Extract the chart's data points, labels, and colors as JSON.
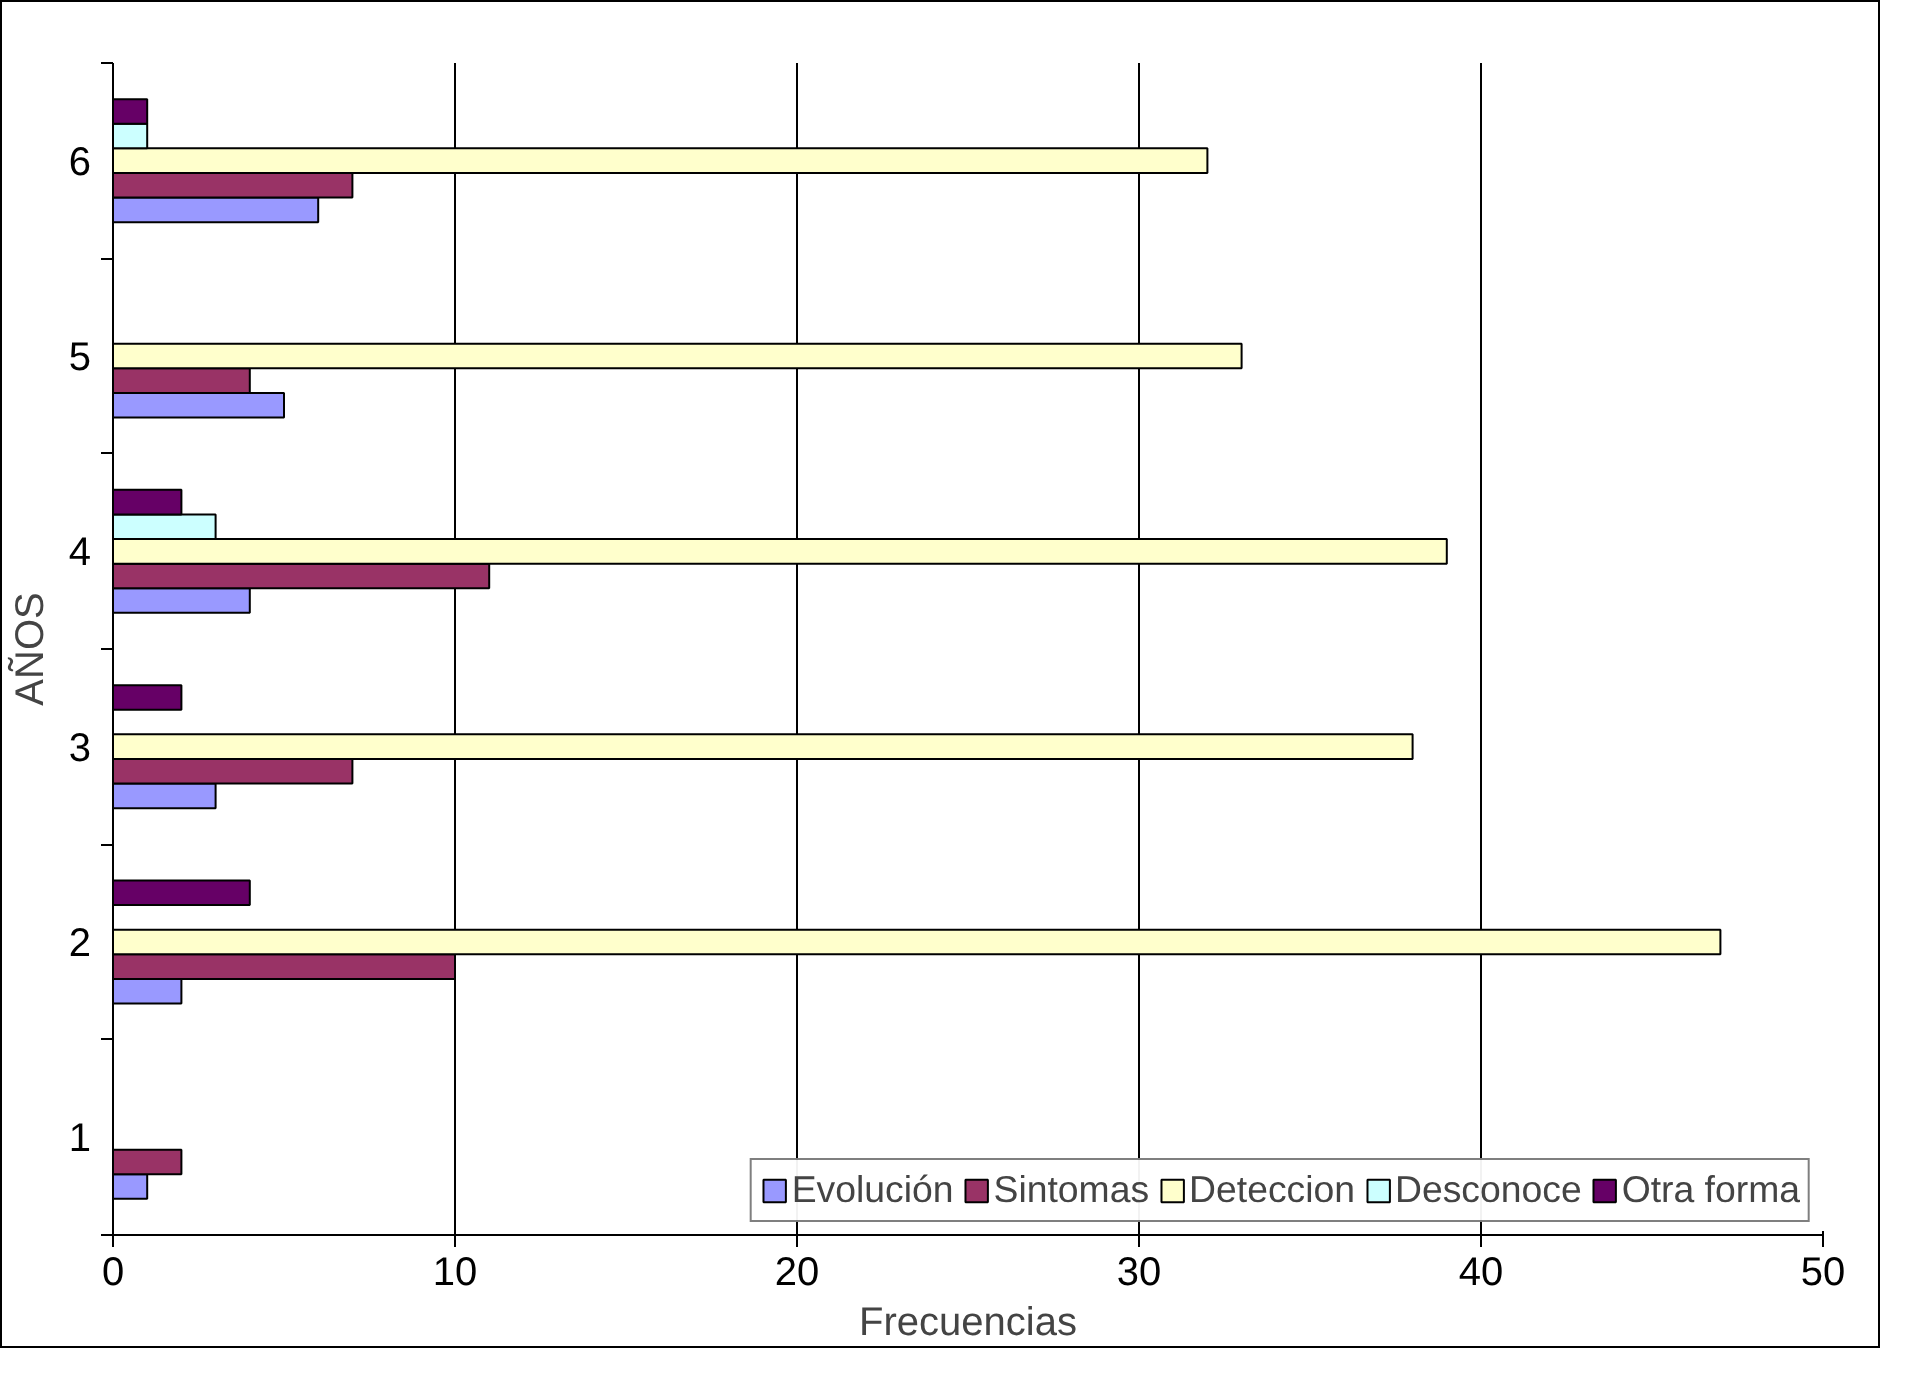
{
  "chart_data": {
    "type": "bar",
    "orientation": "horizontal",
    "xlabel": "Frecuencias",
    "ylabel": "AÑOS",
    "categories": [
      "6",
      "5",
      "4",
      "3",
      "2",
      "1"
    ],
    "series": [
      {
        "name": "Evolución",
        "color": "#9999ff",
        "values": [
          6,
          5,
          4,
          3,
          2,
          1
        ]
      },
      {
        "name": "Sintomas",
        "color": "#993366",
        "values": [
          7,
          4,
          11,
          7,
          10,
          2
        ]
      },
      {
        "name": "Deteccion",
        "color": "#ffffcc",
        "values": [
          32,
          33,
          39,
          38,
          47,
          null
        ]
      },
      {
        "name": "Desconoce",
        "color": "#ccffff",
        "values": [
          1,
          null,
          3,
          null,
          null,
          null
        ]
      },
      {
        "name": "Otra forma",
        "color": "#660066",
        "values": [
          1,
          null,
          2,
          2,
          4,
          null
        ]
      }
    ],
    "xlim": [
      0,
      50
    ],
    "xticks": [
      0,
      10,
      20,
      30,
      40,
      50
    ],
    "grid": "x",
    "legend": "bottom"
  }
}
